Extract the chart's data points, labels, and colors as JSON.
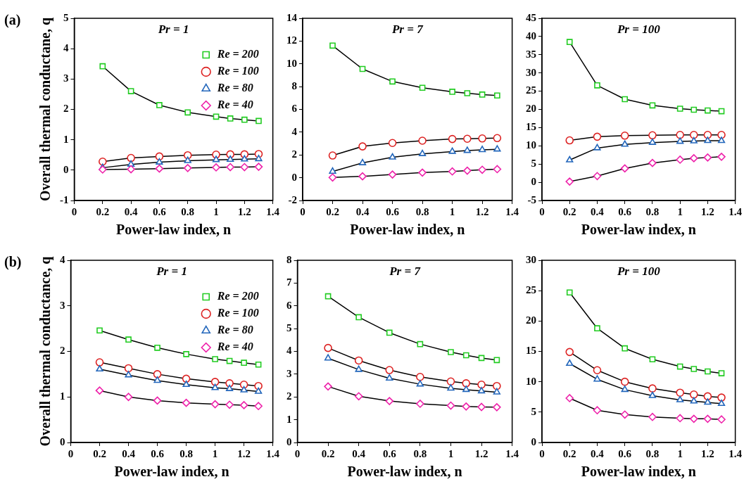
{
  "chart_data": [
    {
      "type": "line",
      "title": "Pr = 1",
      "xlabel": "Power-law index, n",
      "ylabel": "Overall thermal conductane, q",
      "annotations": [
        "(a)"
      ],
      "x": [
        0.2,
        0.4,
        0.6,
        0.8,
        1.0,
        1.1,
        1.2,
        1.3
      ],
      "xlim": [
        0,
        1.4
      ],
      "xticks": [
        0,
        0.2,
        0.4,
        0.6,
        0.8,
        1,
        1.2,
        1.4
      ],
      "ylim": [
        -1,
        5
      ],
      "yticks": [
        -1,
        0,
        1,
        2,
        3,
        4,
        5
      ],
      "legend": "top right",
      "grid": false,
      "series": [
        {
          "name": "Re = 200",
          "color": "#22cc22",
          "marker": "square",
          "values": [
            3.42,
            2.6,
            2.14,
            1.9,
            1.76,
            1.7,
            1.66,
            1.62
          ]
        },
        {
          "name": "Re = 100",
          "color": "#dd2222",
          "marker": "circle",
          "values": [
            0.28,
            0.4,
            0.45,
            0.49,
            0.51,
            0.52,
            0.52,
            0.53
          ]
        },
        {
          "name": "Re = 80",
          "color": "#2266bb",
          "marker": "triangle",
          "values": [
            0.08,
            0.19,
            0.26,
            0.31,
            0.34,
            0.35,
            0.36,
            0.37
          ]
        },
        {
          "name": "Re = 40",
          "color": "#ee22aa",
          "marker": "diamond",
          "values": [
            0.02,
            0.03,
            0.05,
            0.07,
            0.09,
            0.1,
            0.1,
            0.11
          ]
        }
      ]
    },
    {
      "type": "line",
      "title": "Pr = 7",
      "xlabel": "Power-law index, n",
      "x": [
        0.2,
        0.4,
        0.6,
        0.8,
        1.0,
        1.1,
        1.2,
        1.3
      ],
      "xlim": [
        0,
        1.4
      ],
      "xticks": [
        0,
        0.2,
        0.4,
        0.6,
        0.8,
        1,
        1.2,
        1.4
      ],
      "ylim": [
        -2,
        14
      ],
      "yticks": [
        -2,
        0,
        2,
        4,
        6,
        8,
        10,
        12,
        14
      ],
      "grid": false,
      "series": [
        {
          "color": "#22cc22",
          "marker": "square",
          "values": [
            11.6,
            9.55,
            8.45,
            7.9,
            7.55,
            7.42,
            7.3,
            7.22
          ]
        },
        {
          "color": "#dd2222",
          "marker": "circle",
          "values": [
            1.95,
            2.75,
            3.05,
            3.25,
            3.4,
            3.42,
            3.45,
            3.48
          ]
        },
        {
          "color": "#2266bb",
          "marker": "triangle",
          "values": [
            0.55,
            1.3,
            1.8,
            2.1,
            2.3,
            2.38,
            2.45,
            2.5
          ]
        },
        {
          "color": "#ee22aa",
          "marker": "diamond",
          "values": [
            0.02,
            0.12,
            0.28,
            0.45,
            0.55,
            0.62,
            0.7,
            0.75
          ]
        }
      ]
    },
    {
      "type": "line",
      "title": "Pr = 100",
      "xlabel": "Power-law index, n",
      "x": [
        0.2,
        0.4,
        0.6,
        0.8,
        1.0,
        1.1,
        1.2,
        1.3
      ],
      "xlim": [
        0,
        1.4
      ],
      "xticks": [
        0,
        0.2,
        0.4,
        0.6,
        0.8,
        1,
        1.2,
        1.4
      ],
      "ylim": [
        -5,
        45
      ],
      "yticks": [
        -5,
        0,
        5,
        10,
        15,
        20,
        25,
        30,
        35,
        40,
        45
      ],
      "grid": false,
      "series": [
        {
          "color": "#22cc22",
          "marker": "square",
          "values": [
            38.5,
            26.6,
            22.8,
            21.1,
            20.2,
            19.9,
            19.7,
            19.5
          ]
        },
        {
          "color": "#dd2222",
          "marker": "circle",
          "values": [
            11.5,
            12.5,
            12.8,
            12.9,
            13,
            13,
            13,
            13
          ]
        },
        {
          "color": "#2266bb",
          "marker": "triangle",
          "values": [
            6.1,
            9.4,
            10.4,
            10.9,
            11.2,
            11.3,
            11.4,
            11.4
          ]
        },
        {
          "color": "#ee22aa",
          "marker": "diamond",
          "values": [
            0.2,
            1.7,
            3.8,
            5.3,
            6.2,
            6.6,
            6.8,
            7.0
          ]
        }
      ]
    },
    {
      "type": "line",
      "title": "Pr = 1",
      "xlabel": "Power-law index, n",
      "ylabel": "Overall thermal conductance, q",
      "annotations": [
        "(b)"
      ],
      "x": [
        0.2,
        0.4,
        0.6,
        0.8,
        1.0,
        1.1,
        1.2,
        1.3
      ],
      "xlim": [
        0,
        1.4
      ],
      "xticks": [
        0,
        0.2,
        0.4,
        0.6,
        0.8,
        1,
        1.2,
        1.4
      ],
      "ylim": [
        0,
        4
      ],
      "yticks": [
        0,
        1,
        2,
        3,
        4
      ],
      "legend": "top right",
      "grid": false,
      "series": [
        {
          "name": "Re = 200",
          "color": "#22cc22",
          "marker": "square",
          "values": [
            2.46,
            2.26,
            2.08,
            1.94,
            1.83,
            1.79,
            1.75,
            1.71
          ]
        },
        {
          "name": "Re = 100",
          "color": "#dd2222",
          "marker": "circle",
          "values": [
            1.76,
            1.63,
            1.5,
            1.4,
            1.33,
            1.3,
            1.27,
            1.24
          ]
        },
        {
          "name": "Re = 80",
          "color": "#2266bb",
          "marker": "triangle",
          "values": [
            1.61,
            1.48,
            1.36,
            1.27,
            1.2,
            1.18,
            1.15,
            1.12
          ]
        },
        {
          "name": "Re = 40",
          "color": "#ee22aa",
          "marker": "diamond",
          "values": [
            1.14,
            1.0,
            0.92,
            0.87,
            0.84,
            0.83,
            0.82,
            0.8
          ]
        }
      ]
    },
    {
      "type": "line",
      "title": "Pr = 7",
      "xlabel": "Power-law index, n",
      "x": [
        0.2,
        0.4,
        0.6,
        0.8,
        1.0,
        1.1,
        1.2,
        1.3
      ],
      "xlim": [
        0,
        1.4
      ],
      "xticks": [
        0,
        0.2,
        0.4,
        0.6,
        0.8,
        1,
        1.2,
        1.4
      ],
      "ylim": [
        0,
        8
      ],
      "yticks": [
        0,
        1,
        2,
        3,
        4,
        5,
        6,
        7,
        8
      ],
      "grid": false,
      "series": [
        {
          "color": "#22cc22",
          "marker": "square",
          "values": [
            6.42,
            5.5,
            4.82,
            4.32,
            3.97,
            3.83,
            3.71,
            3.62
          ]
        },
        {
          "color": "#dd2222",
          "marker": "circle",
          "values": [
            4.15,
            3.6,
            3.18,
            2.88,
            2.68,
            2.6,
            2.54,
            2.48
          ]
        },
        {
          "color": "#2266bb",
          "marker": "triangle",
          "values": [
            3.7,
            3.2,
            2.82,
            2.56,
            2.38,
            2.32,
            2.26,
            2.21
          ]
        },
        {
          "color": "#ee22aa",
          "marker": "diamond",
          "values": [
            2.46,
            2.03,
            1.82,
            1.7,
            1.62,
            1.58,
            1.56,
            1.55
          ]
        }
      ]
    },
    {
      "type": "line",
      "title": "Pr = 100",
      "xlabel": "Power-law index, n",
      "x": [
        0.2,
        0.4,
        0.6,
        0.8,
        1.0,
        1.1,
        1.2,
        1.3
      ],
      "xlim": [
        0,
        1.4
      ],
      "xticks": [
        0,
        0.2,
        0.4,
        0.6,
        0.8,
        1,
        1.2,
        1.4
      ],
      "ylim": [
        0,
        30
      ],
      "yticks": [
        0,
        5,
        10,
        15,
        20,
        25,
        30
      ],
      "grid": false,
      "series": [
        {
          "color": "#22cc22",
          "marker": "square",
          "values": [
            24.7,
            18.8,
            15.5,
            13.7,
            12.5,
            12.1,
            11.7,
            11.4
          ]
        },
        {
          "color": "#dd2222",
          "marker": "circle",
          "values": [
            14.9,
            11.9,
            10.0,
            8.9,
            8.2,
            7.9,
            7.6,
            7.4
          ]
        },
        {
          "color": "#2266bb",
          "marker": "triangle",
          "values": [
            13.0,
            10.4,
            8.7,
            7.7,
            7.0,
            6.8,
            6.6,
            6.4
          ]
        },
        {
          "color": "#ee22aa",
          "marker": "diamond",
          "values": [
            7.3,
            5.3,
            4.6,
            4.2,
            4.0,
            3.9,
            3.9,
            3.8
          ]
        }
      ]
    }
  ]
}
